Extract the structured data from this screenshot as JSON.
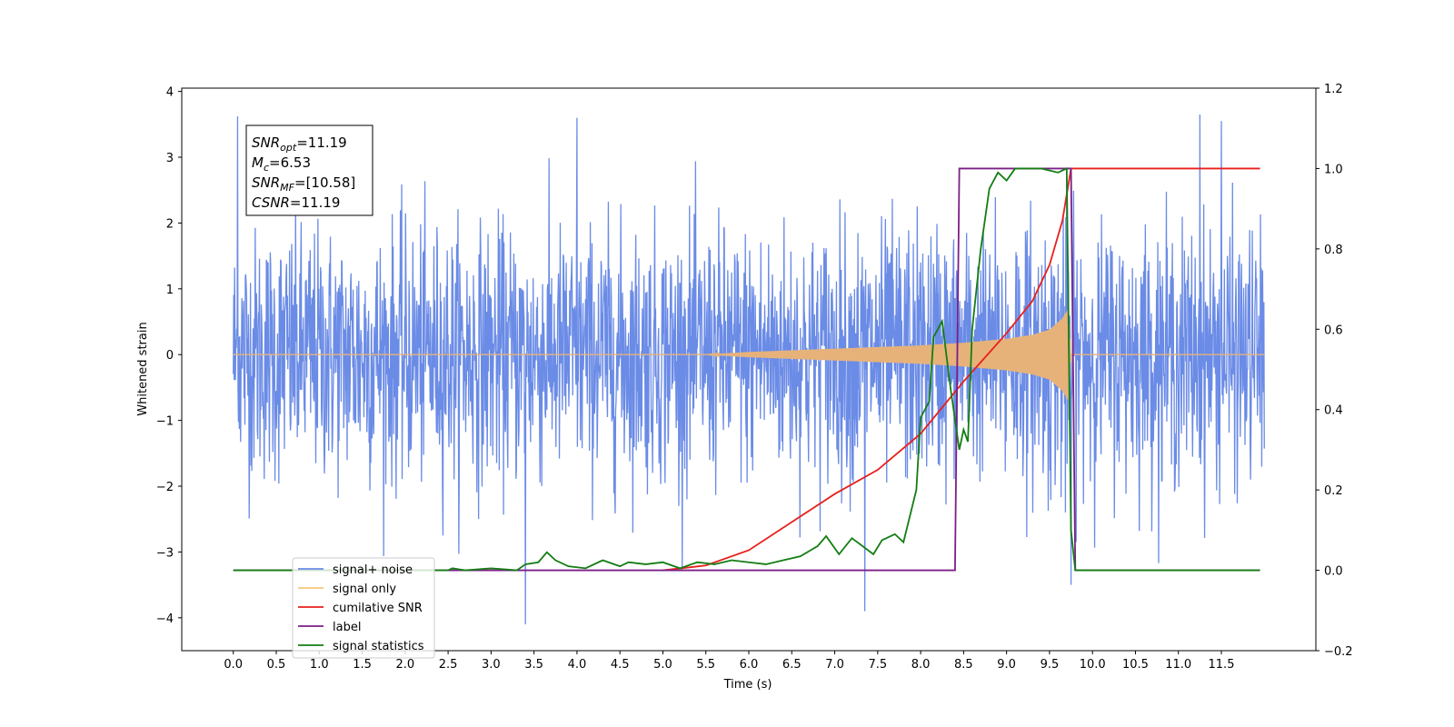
{
  "chart_data": {
    "type": "line",
    "title": "",
    "xlabel": "Time (s)",
    "ylabel": "Whitened strain",
    "y2label": "",
    "xlim": [
      -0.6,
      12.6
    ],
    "ylim": [
      -4.5,
      4.05
    ],
    "y2lim": [
      -0.2,
      1.2
    ],
    "x_ticks": [
      0.0,
      0.5,
      1.0,
      1.5,
      2.0,
      2.5,
      3.0,
      3.5,
      4.0,
      4.5,
      5.0,
      5.5,
      6.0,
      6.5,
      7.0,
      7.5,
      8.0,
      8.5,
      9.0,
      9.5,
      10.0,
      10.5,
      11.0,
      11.5
    ],
    "x_tick_labels": [
      "0.0",
      "0.5",
      "1.0",
      "1.5",
      "2.0",
      "2.5",
      "3.0",
      "3.5",
      "4.0",
      "4.5",
      "5.0",
      "5.5",
      "6.0",
      "6.5",
      "7.0",
      "7.5",
      "8.0",
      "8.5",
      "9.0",
      "9.5",
      "10.0",
      "10.5",
      "11.0",
      "11.5"
    ],
    "y_ticks": [
      -4,
      -3,
      -2,
      -1,
      0,
      1,
      2,
      3,
      4
    ],
    "y_tick_labels": [
      "−4",
      "−3",
      "−2",
      "−1",
      "0",
      "1",
      "2",
      "3",
      "4"
    ],
    "y2_ticks": [
      -0.2,
      0.0,
      0.2,
      0.4,
      0.6,
      0.8,
      1.0,
      1.2
    ],
    "y2_tick_labels": [
      "−0.2",
      "0.0",
      "0.2",
      "0.4",
      "0.6",
      "0.8",
      "1.0",
      "1.2"
    ],
    "grid": false,
    "legend_position": "lower-left",
    "series": [
      {
        "name": "signal+ noise",
        "axis": "left",
        "color": "#6a8be6",
        "description_values": "dense noisy strain, approx uniform band -2.5..2.5 with spikes to about +-3.6, from 0 to 12 s",
        "x_range": [
          0.0,
          12.0
        ],
        "envelope": [
          [
            0.0,
            2.3
          ],
          [
            12.0,
            2.3
          ]
        ],
        "peaks": [
          [
            0.05,
            3.62
          ],
          [
            3.4,
            -4.1
          ],
          [
            4.0,
            3.6
          ],
          [
            7.35,
            -3.9
          ],
          [
            9.75,
            -3.5
          ],
          [
            11.25,
            3.65
          ],
          [
            11.5,
            3.55
          ]
        ]
      },
      {
        "name": "signal only",
        "axis": "left",
        "color": "#e6b27a",
        "x_range": [
          0.0,
          12.0
        ],
        "envelope": [
          [
            0.0,
            0.0
          ],
          [
            5.5,
            0.0
          ],
          [
            6.0,
            0.04
          ],
          [
            7.0,
            0.09
          ],
          [
            8.0,
            0.14
          ],
          [
            8.5,
            0.18
          ],
          [
            9.0,
            0.24
          ],
          [
            9.3,
            0.3
          ],
          [
            9.5,
            0.38
          ],
          [
            9.65,
            0.55
          ],
          [
            9.72,
            0.7
          ],
          [
            9.75,
            0.0
          ],
          [
            12.0,
            0.0
          ]
        ]
      },
      {
        "name": "cumilative SNR",
        "axis": "right",
        "color": "#e8201c",
        "points": [
          [
            5.0,
            0.0
          ],
          [
            5.5,
            0.012
          ],
          [
            6.0,
            0.05
          ],
          [
            6.5,
            0.12
          ],
          [
            7.0,
            0.19
          ],
          [
            7.5,
            0.25
          ],
          [
            8.0,
            0.34
          ],
          [
            8.5,
            0.47
          ],
          [
            9.0,
            0.59
          ],
          [
            9.3,
            0.67
          ],
          [
            9.5,
            0.76
          ],
          [
            9.65,
            0.87
          ],
          [
            9.75,
            1.0
          ],
          [
            11.95,
            1.0
          ]
        ]
      },
      {
        "name": "label",
        "axis": "right",
        "color": "#7b1f86",
        "points": [
          [
            0.0,
            0.0
          ],
          [
            8.4,
            0.0
          ],
          [
            8.45,
            1.0
          ],
          [
            9.75,
            1.0
          ],
          [
            9.8,
            0.0
          ],
          [
            11.95,
            0.0
          ]
        ]
      },
      {
        "name": "signal statistics",
        "axis": "right",
        "color": "#137d13",
        "points": [
          [
            0.0,
            0.0
          ],
          [
            2.5,
            0.0
          ],
          [
            2.55,
            0.005
          ],
          [
            2.7,
            0.0
          ],
          [
            3.0,
            0.005
          ],
          [
            3.3,
            0.0
          ],
          [
            3.4,
            0.015
          ],
          [
            3.55,
            0.02
          ],
          [
            3.65,
            0.045
          ],
          [
            3.75,
            0.025
          ],
          [
            3.9,
            0.01
          ],
          [
            4.1,
            0.005
          ],
          [
            4.3,
            0.025
          ],
          [
            4.5,
            0.01
          ],
          [
            4.6,
            0.02
          ],
          [
            4.8,
            0.015
          ],
          [
            5.0,
            0.02
          ],
          [
            5.2,
            0.005
          ],
          [
            5.4,
            0.02
          ],
          [
            5.6,
            0.015
          ],
          [
            5.8,
            0.025
          ],
          [
            6.0,
            0.02
          ],
          [
            6.2,
            0.015
          ],
          [
            6.4,
            0.025
          ],
          [
            6.6,
            0.035
          ],
          [
            6.8,
            0.06
          ],
          [
            6.9,
            0.085
          ],
          [
            7.05,
            0.04
          ],
          [
            7.2,
            0.08
          ],
          [
            7.45,
            0.04
          ],
          [
            7.55,
            0.075
          ],
          [
            7.7,
            0.09
          ],
          [
            7.8,
            0.07
          ],
          [
            7.95,
            0.2
          ],
          [
            8.0,
            0.38
          ],
          [
            8.1,
            0.42
          ],
          [
            8.15,
            0.58
          ],
          [
            8.25,
            0.62
          ],
          [
            8.35,
            0.45
          ],
          [
            8.45,
            0.3
          ],
          [
            8.5,
            0.35
          ],
          [
            8.55,
            0.32
          ],
          [
            8.6,
            0.6
          ],
          [
            8.7,
            0.8
          ],
          [
            8.8,
            0.95
          ],
          [
            8.9,
            0.99
          ],
          [
            9.0,
            0.97
          ],
          [
            9.1,
            1.0
          ],
          [
            9.4,
            1.0
          ],
          [
            9.6,
            0.99
          ],
          [
            9.7,
            1.0
          ],
          [
            9.75,
            0.1
          ],
          [
            9.8,
            0.0
          ],
          [
            11.95,
            0.0
          ]
        ]
      }
    ],
    "legend_entries": [
      {
        "name": "signal+ noise",
        "color": "#6a8be6"
      },
      {
        "name": "signal only",
        "color": "#f5c77f"
      },
      {
        "name": "cumilative SNR",
        "color": "#e8201c"
      },
      {
        "name": "label",
        "color": "#7b1f86"
      },
      {
        "name": "signal statistics",
        "color": "#137d13"
      }
    ],
    "annotation": {
      "lines": [
        {
          "symbol": "SNR",
          "sub": "opt",
          "value": "=11.19"
        },
        {
          "symbol": "M",
          "sub": "c",
          "value": "=6.53"
        },
        {
          "symbol": "SNR",
          "sub": "MF",
          "value": "=[10.58]"
        },
        {
          "symbol": "CSNR",
          "sub": "",
          "value": "=11.19"
        }
      ]
    }
  }
}
